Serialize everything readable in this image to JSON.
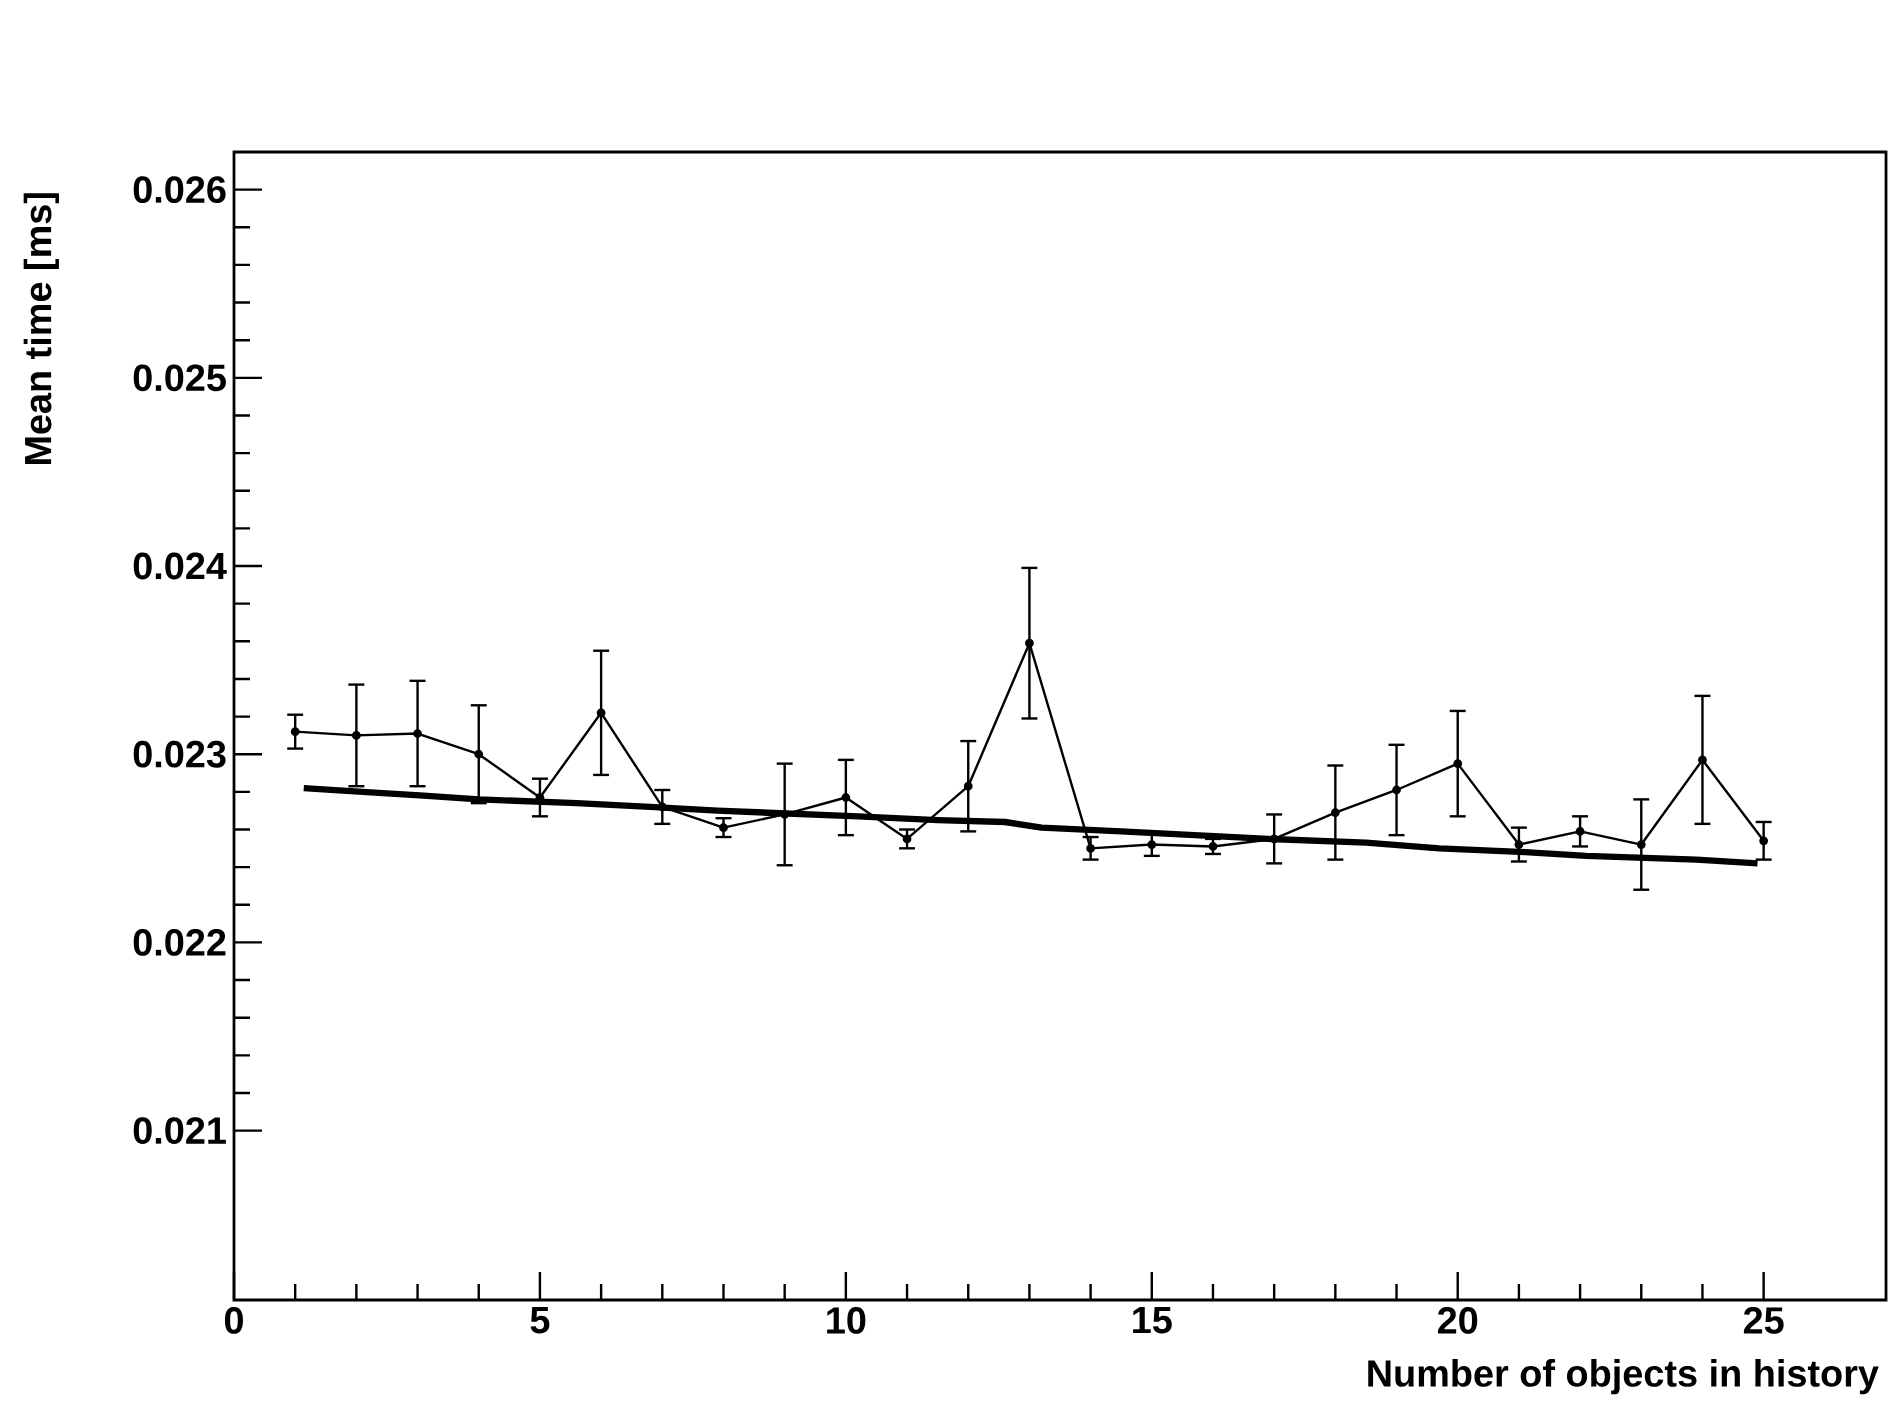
{
  "chart_data": {
    "type": "line",
    "xlabel": "Number of objects in history",
    "ylabel": "Mean time [ms]",
    "xlim": [
      0,
      27
    ],
    "ylim": [
      0.0201,
      0.0262
    ],
    "xticks": [
      0,
      5,
      10,
      15,
      20,
      25
    ],
    "yticks": [
      0.021,
      0.022,
      0.023,
      0.024,
      0.025,
      0.026
    ],
    "series": [
      {
        "color": "#000000",
        "marker": "circle",
        "x": [
          1,
          2,
          3,
          4,
          5,
          6,
          7,
          8,
          9,
          10,
          11,
          12,
          13,
          14,
          15,
          16,
          17,
          18,
          19,
          20,
          21,
          22,
          23,
          24,
          25
        ],
        "values": [
          0.02312,
          0.0231,
          0.02311,
          0.023,
          0.02277,
          0.02322,
          0.02272,
          0.02261,
          0.02268,
          0.02277,
          0.02255,
          0.02283,
          0.02359,
          0.0225,
          0.02252,
          0.02251,
          0.02255,
          0.02269,
          0.02281,
          0.02295,
          0.02252,
          0.02259,
          0.02252,
          0.02297,
          0.02254
        ],
        "errors": [
          9e-05,
          0.00027,
          0.00028,
          0.00026,
          0.0001,
          0.00033,
          9e-05,
          5e-05,
          0.00027,
          0.0002,
          5e-05,
          0.00024,
          0.0004,
          6e-05,
          6e-05,
          4e-05,
          0.00013,
          0.00025,
          0.00024,
          0.00028,
          9e-05,
          8e-05,
          0.00024,
          0.00034,
          0.0001
        ]
      },
      {
        "color": "#000000",
        "marker": "none",
        "x": [
          1.14,
          2.1,
          3.1,
          4.0,
          5.6,
          6.8,
          7.9,
          10.2,
          11.5,
          12.6,
          13.2,
          14.5,
          15.7,
          16.9,
          18.5,
          19.7,
          21.1,
          22.1,
          23.9,
          24.9
        ],
        "values": [
          0.02282,
          0.0228,
          0.02278,
          0.02276,
          0.02274,
          0.02272,
          0.0227,
          0.02267,
          0.02265,
          0.02264,
          0.02261,
          0.02259,
          0.02257,
          0.02255,
          0.02253,
          0.0225,
          0.02248,
          0.02246,
          0.02244,
          0.02242
        ]
      }
    ]
  }
}
